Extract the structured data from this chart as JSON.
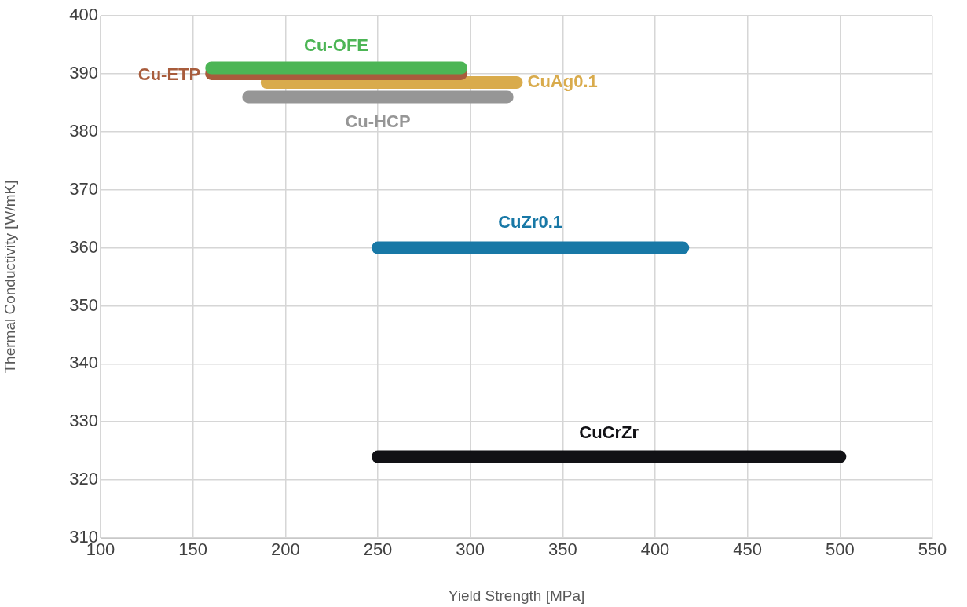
{
  "chart_data": {
    "type": "line",
    "xlabel": "Yield Strength [MPa]",
    "ylabel": "Thermal Conductivity [W/mK]",
    "xlim": [
      100,
      550
    ],
    "xticks": [
      100,
      150,
      200,
      250,
      300,
      350,
      400,
      450,
      500,
      550
    ],
    "ylim": [
      310,
      400
    ],
    "yticks": [
      310,
      320,
      330,
      340,
      350,
      360,
      370,
      380,
      390,
      400
    ],
    "grid": true,
    "legend": false,
    "marker": "none",
    "line_style": "solid",
    "series": [
      {
        "name": "Cu-OFE",
        "color": "#4cb555",
        "x": [
          160,
          295
        ],
        "values": [
          391,
          391
        ]
      },
      {
        "name": "Cu-ETP",
        "color": "#a85c3c",
        "x": [
          160,
          295
        ],
        "values": [
          390,
          390
        ]
      },
      {
        "name": "CuAg0.1",
        "color": "#d9ab4c",
        "x": [
          190,
          325
        ],
        "values": [
          388.5,
          388.5
        ]
      },
      {
        "name": "Cu-HCP",
        "color": "#969696",
        "x": [
          180,
          320
        ],
        "values": [
          386,
          386
        ]
      },
      {
        "name": "CuZr0.1",
        "color": "#1878a6",
        "x": [
          250,
          415
        ],
        "values": [
          360,
          360
        ]
      },
      {
        "name": "CuCrZr",
        "color": "#111115",
        "x": [
          250,
          500
        ],
        "values": [
          324,
          324
        ]
      }
    ]
  }
}
